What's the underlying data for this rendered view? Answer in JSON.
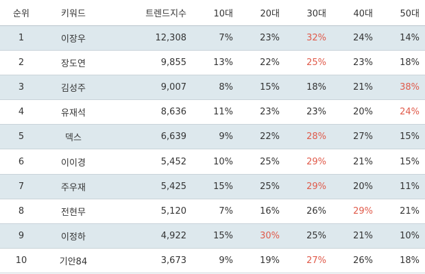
{
  "table": {
    "columns": [
      "순위",
      "키워드",
      "트렌드지수",
      "10대",
      "20대",
      "30대",
      "40대",
      "50대"
    ],
    "highlight_color": "#e05a4a",
    "rows": [
      {
        "rank": "1",
        "keyword": "이장우",
        "index": "12,308",
        "s10": "7%",
        "s20": "23%",
        "s30": "32%",
        "s40": "24%",
        "s50": "14%",
        "highlight": [
          "s30"
        ]
      },
      {
        "rank": "2",
        "keyword": "장도연",
        "index": "9,855",
        "s10": "13%",
        "s20": "22%",
        "s30": "25%",
        "s40": "23%",
        "s50": "18%",
        "highlight": [
          "s30"
        ]
      },
      {
        "rank": "3",
        "keyword": "김성주",
        "index": "9,007",
        "s10": "8%",
        "s20": "15%",
        "s30": "18%",
        "s40": "21%",
        "s50": "38%",
        "highlight": [
          "s50"
        ]
      },
      {
        "rank": "4",
        "keyword": "유재석",
        "index": "8,636",
        "s10": "11%",
        "s20": "23%",
        "s30": "23%",
        "s40": "20%",
        "s50": "24%",
        "highlight": [
          "s50"
        ]
      },
      {
        "rank": "5",
        "keyword": "덱스",
        "index": "6,639",
        "s10": "9%",
        "s20": "22%",
        "s30": "28%",
        "s40": "27%",
        "s50": "15%",
        "highlight": [
          "s30"
        ]
      },
      {
        "rank": "6",
        "keyword": "이이경",
        "index": "5,452",
        "s10": "10%",
        "s20": "25%",
        "s30": "29%",
        "s40": "21%",
        "s50": "15%",
        "highlight": [
          "s30"
        ]
      },
      {
        "rank": "7",
        "keyword": "주우재",
        "index": "5,425",
        "s10": "15%",
        "s20": "25%",
        "s30": "29%",
        "s40": "20%",
        "s50": "11%",
        "highlight": [
          "s30"
        ]
      },
      {
        "rank": "8",
        "keyword": "전현무",
        "index": "5,120",
        "s10": "7%",
        "s20": "16%",
        "s30": "26%",
        "s40": "29%",
        "s50": "21%",
        "highlight": [
          "s40"
        ]
      },
      {
        "rank": "9",
        "keyword": "이정하",
        "index": "4,922",
        "s10": "15%",
        "s20": "30%",
        "s30": "25%",
        "s40": "21%",
        "s50": "10%",
        "highlight": [
          "s20"
        ]
      },
      {
        "rank": "10",
        "keyword": "기안84",
        "index": "3,673",
        "s10": "9%",
        "s20": "19%",
        "s30": "27%",
        "s40": "26%",
        "s50": "18%",
        "highlight": [
          "s30"
        ]
      }
    ]
  }
}
